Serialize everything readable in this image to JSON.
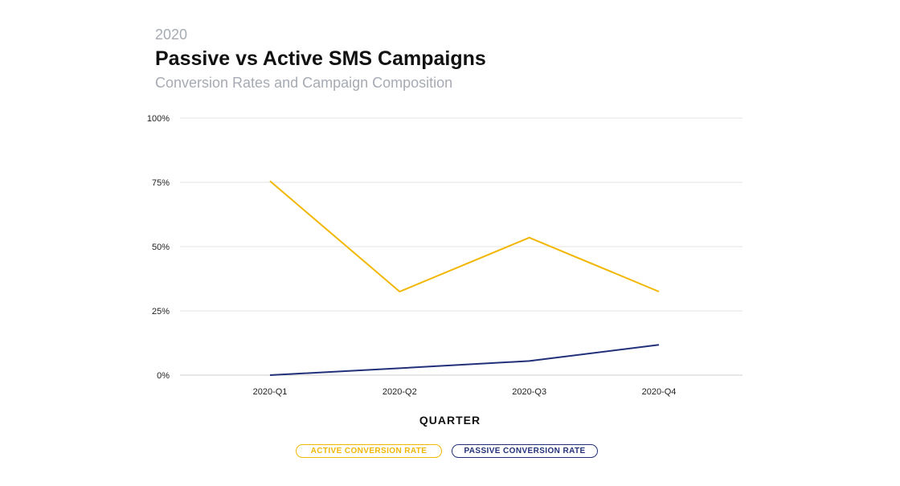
{
  "header": {
    "year": "2020",
    "title": "Passive vs Active SMS Campaigns",
    "subtitle": "Conversion Rates and Campaign Composition"
  },
  "chart_data": {
    "type": "line",
    "title": "Passive vs Active SMS Campaigns",
    "subtitle": "Conversion Rates and Campaign Composition",
    "xlabel": "QUARTER",
    "ylabel": "",
    "categories": [
      "2020-Q1",
      "2020-Q2",
      "2020-Q3",
      "2020-Q4"
    ],
    "ylim": [
      0,
      100
    ],
    "yticks": [
      0,
      25,
      50,
      75,
      100
    ],
    "ytick_labels": [
      "0%",
      "25%",
      "50%",
      "75%",
      "100%"
    ],
    "grid": true,
    "legend_position": "bottom-center",
    "series": [
      {
        "name": "ACTIVE CONVERSION RATE",
        "color": "#f2b705",
        "values": [
          75.5,
          32.5,
          53.5,
          32.5
        ]
      },
      {
        "name": "PASSIVE CONVERSION RATE",
        "color": "#22307a",
        "values": [
          0,
          2.7,
          5.5,
          11.8
        ]
      }
    ]
  }
}
